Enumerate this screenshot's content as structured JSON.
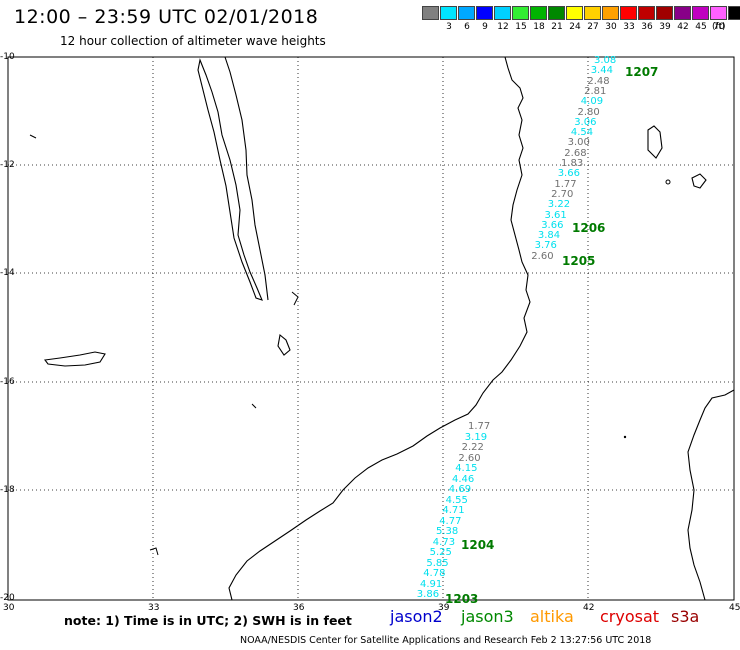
{
  "header": {
    "title": "12:00 – 23:59 UTC 02/01/2018",
    "subtitle": "12 hour collection of altimeter wave heights"
  },
  "legend": {
    "colors": [
      "#808080",
      "#00e5ff",
      "#00a8ff",
      "#0000ff",
      "#00d0ff",
      "#33ee33",
      "#00b400",
      "#008800",
      "#ffff00",
      "#ffd000",
      "#ffa000",
      "#ff0000",
      "#c00000",
      "#a00000",
      "#880088",
      "#c000c0",
      "#ff60ff",
      "#000000"
    ],
    "labels": [
      "3",
      "6",
      "9",
      "12",
      "15",
      "18",
      "21",
      "24",
      "27",
      "30",
      "33",
      "36",
      "39",
      "42",
      "45",
      "70"
    ],
    "unit": "(ft)"
  },
  "axes": {
    "lat_labels": [
      "-10",
      "-12",
      "-14",
      "-16",
      "-18",
      "-20"
    ],
    "lon_labels": [
      "30",
      "33",
      "36",
      "39",
      "42",
      "45"
    ]
  },
  "tracks": {
    "upper": [
      {
        "value": "3.08",
        "color": "cyan"
      },
      {
        "value": "3.44",
        "color": "cyan"
      },
      {
        "value": "2.48",
        "color": "gray"
      },
      {
        "value": "2.81",
        "color": "gray"
      },
      {
        "value": "4.09",
        "color": "cyan"
      },
      {
        "value": "2.80",
        "color": "gray"
      },
      {
        "value": "3.06",
        "color": "cyan"
      },
      {
        "value": "4.54",
        "color": "cyan"
      },
      {
        "value": "3.00",
        "color": "gray"
      },
      {
        "value": "2.68",
        "color": "gray"
      },
      {
        "value": "1.83",
        "color": "gray"
      },
      {
        "value": "3.66",
        "color": "cyan"
      },
      {
        "value": "1.77",
        "color": "gray"
      },
      {
        "value": "2.70",
        "color": "gray"
      },
      {
        "value": "3.22",
        "color": "cyan"
      },
      {
        "value": "3.61",
        "color": "cyan"
      },
      {
        "value": "3.66",
        "color": "cyan"
      },
      {
        "value": "3.84",
        "color": "cyan"
      },
      {
        "value": "3.76",
        "color": "cyan"
      },
      {
        "value": "2.60",
        "color": "gray"
      }
    ],
    "lower": [
      {
        "value": "1.77",
        "color": "gray"
      },
      {
        "value": "3.19",
        "color": "cyan"
      },
      {
        "value": "2.22",
        "color": "gray"
      },
      {
        "value": "2.60",
        "color": "gray"
      },
      {
        "value": "4.15",
        "color": "cyan"
      },
      {
        "value": "4.46",
        "color": "cyan"
      },
      {
        "value": "4.69",
        "color": "cyan"
      },
      {
        "value": "4.55",
        "color": "cyan"
      },
      {
        "value": "4.71",
        "color": "cyan"
      },
      {
        "value": "4.77",
        "color": "cyan"
      },
      {
        "value": "5.38",
        "color": "cyan"
      },
      {
        "value": "4.73",
        "color": "cyan"
      },
      {
        "value": "5.25",
        "color": "cyan"
      },
      {
        "value": "5.85",
        "color": "cyan"
      },
      {
        "value": "4.78",
        "color": "cyan"
      },
      {
        "value": "4.91",
        "color": "cyan"
      },
      {
        "value": "3.86",
        "color": "cyan"
      }
    ],
    "pass_labels": [
      "1207",
      "1206",
      "1205",
      "1204",
      "1203"
    ]
  },
  "note": "note:  1) Time is in UTC;  2) SWH is in feet",
  "satellites": [
    {
      "name": "jason2",
      "color": "#0000cc"
    },
    {
      "name": "jason3",
      "color": "#008800"
    },
    {
      "name": "altika",
      "color": "#ff9900"
    },
    {
      "name": "cryosat",
      "color": "#dd0000"
    },
    {
      "name": "s3a",
      "color": "#990000"
    }
  ],
  "footer": "NOAA/NESDIS Center for Satellite Applications and Research    Feb  2 13:27:56 UTC 2018"
}
